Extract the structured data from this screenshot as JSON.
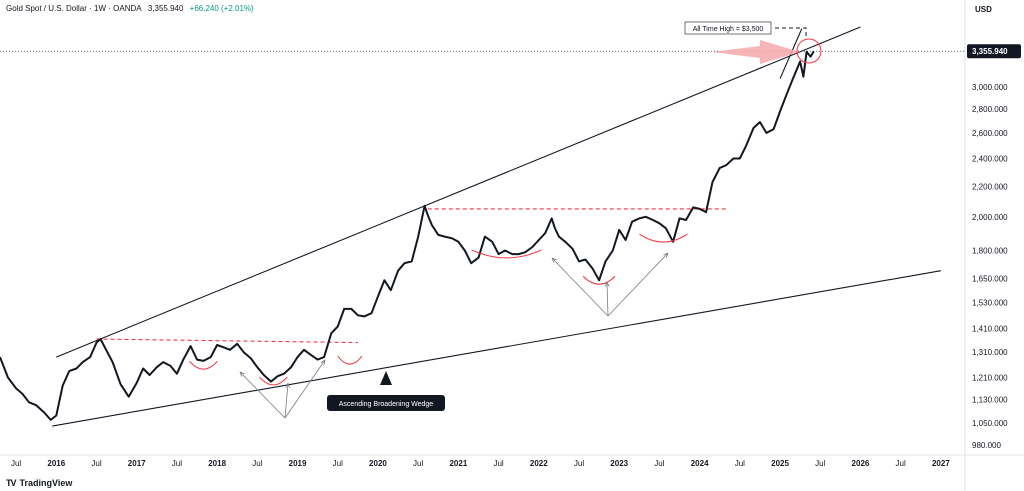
{
  "header": {
    "symbol": "Gold Spot / U.S. Dollar · 1W · OANDA",
    "last": "3,355.940",
    "change": "+66.240 (+2.01%)"
  },
  "brand": {
    "name": "TradingView",
    "logo": "TV"
  },
  "colors": {
    "price": "#131722",
    "resistance_dash": "#f23645",
    "arrow": "#f7a8aa",
    "annotation_arrow": "#787b86"
  },
  "annotations": {
    "wedge_label": "Ascending Broadening Wedge",
    "ath_label": "All Time High = $3,500"
  },
  "chart_data": {
    "type": "line",
    "title": "Gold Spot / U.S. Dollar · 1W · OANDA",
    "currency": "USD",
    "last_price_label": "3,355.940",
    "yscale": "log",
    "ylim": [
      950,
      3700
    ],
    "xlim": [
      2015.3,
      2027.3
    ],
    "y_ticks": [
      980,
      1050,
      1130,
      1210,
      1310,
      1410,
      1530,
      1650,
      1800,
      2000,
      2200,
      2400,
      2600,
      2800,
      3000
    ],
    "y_tick_labels": [
      "980.000",
      "1,050.000",
      "1,130.000",
      "1,210.000",
      "1,310.000",
      "1,410.000",
      "1,530.000",
      "1,650.000",
      "1,800.000",
      "2,000.000",
      "2,200.000",
      "2,400.000",
      "2,600.000",
      "2,800.000",
      "3,000.000"
    ],
    "x_ticks": [
      {
        "t": 2015.5,
        "label": "Jul"
      },
      {
        "t": 2016.0,
        "label": "2016"
      },
      {
        "t": 2016.5,
        "label": "Jul"
      },
      {
        "t": 2017.0,
        "label": "2017"
      },
      {
        "t": 2017.5,
        "label": "Jul"
      },
      {
        "t": 2018.0,
        "label": "2018"
      },
      {
        "t": 2018.5,
        "label": "Jul"
      },
      {
        "t": 2019.0,
        "label": "2019"
      },
      {
        "t": 2019.5,
        "label": "Jul"
      },
      {
        "t": 2020.0,
        "label": "2020"
      },
      {
        "t": 2020.5,
        "label": "Jul"
      },
      {
        "t": 2021.0,
        "label": "2021"
      },
      {
        "t": 2021.5,
        "label": "Jul"
      },
      {
        "t": 2022.0,
        "label": "2022"
      },
      {
        "t": 2022.5,
        "label": "Jul"
      },
      {
        "t": 2023.0,
        "label": "2023"
      },
      {
        "t": 2023.5,
        "label": "Jul"
      },
      {
        "t": 2024.0,
        "label": "2024"
      },
      {
        "t": 2024.5,
        "label": "Jul"
      },
      {
        "t": 2025.0,
        "label": "2025"
      },
      {
        "t": 2025.5,
        "label": "Jul"
      },
      {
        "t": 2026.0,
        "label": "2026"
      },
      {
        "t": 2026.5,
        "label": "Jul"
      },
      {
        "t": 2027.0,
        "label": "2027"
      }
    ],
    "series": [
      {
        "x": [
          2015.3,
          2015.4,
          2015.5,
          2015.58,
          2015.66,
          2015.75,
          2015.85,
          2015.93,
          2016.0,
          2016.08,
          2016.16,
          2016.25,
          2016.33,
          2016.42,
          2016.5,
          2016.55,
          2016.62,
          2016.7,
          2016.8,
          2016.9,
          2017.0,
          2017.08,
          2017.16,
          2017.25,
          2017.33,
          2017.42,
          2017.5,
          2017.58,
          2017.67,
          2017.75,
          2017.83,
          2017.92,
          2018.0,
          2018.08,
          2018.16,
          2018.25,
          2018.33,
          2018.42,
          2018.5,
          2018.58,
          2018.67,
          2018.75,
          2018.83,
          2018.92,
          2019.0,
          2019.08,
          2019.16,
          2019.25,
          2019.33,
          2019.42,
          2019.5,
          2019.58,
          2019.67,
          2019.75,
          2019.83,
          2019.92,
          2020.0,
          2020.08,
          2020.16,
          2020.25,
          2020.33,
          2020.42,
          2020.5,
          2020.58,
          2020.62,
          2020.67,
          2020.75,
          2020.83,
          2020.92,
          2021.0,
          2021.08,
          2021.16,
          2021.25,
          2021.33,
          2021.42,
          2021.5,
          2021.58,
          2021.67,
          2021.75,
          2021.83,
          2021.92,
          2022.0,
          2022.08,
          2022.16,
          2022.2,
          2022.25,
          2022.33,
          2022.42,
          2022.5,
          2022.58,
          2022.67,
          2022.75,
          2022.83,
          2022.92,
          2023.0,
          2023.08,
          2023.16,
          2023.25,
          2023.33,
          2023.42,
          2023.5,
          2023.58,
          2023.67,
          2023.75,
          2023.83,
          2023.92,
          2024.0,
          2024.08,
          2024.16,
          2024.25,
          2024.33,
          2024.42,
          2024.5,
          2024.58,
          2024.67,
          2024.75,
          2024.83,
          2024.92,
          2025.0,
          2025.08,
          2025.16,
          2025.25,
          2025.29,
          2025.33,
          2025.38,
          2025.42
        ],
        "y": [
          1290,
          1210,
          1170,
          1150,
          1120,
          1110,
          1085,
          1060,
          1075,
          1180,
          1235,
          1245,
          1270,
          1290,
          1350,
          1365,
          1320,
          1270,
          1185,
          1140,
          1190,
          1245,
          1220,
          1250,
          1270,
          1255,
          1225,
          1280,
          1335,
          1280,
          1275,
          1290,
          1340,
          1330,
          1320,
          1345,
          1310,
          1285,
          1250,
          1220,
          1195,
          1215,
          1225,
          1250,
          1290,
          1320,
          1300,
          1280,
          1290,
          1390,
          1420,
          1500,
          1500,
          1470,
          1465,
          1480,
          1560,
          1640,
          1590,
          1690,
          1730,
          1740,
          1880,
          2070,
          2010,
          1950,
          1890,
          1880,
          1870,
          1850,
          1800,
          1730,
          1760,
          1880,
          1850,
          1780,
          1800,
          1780,
          1780,
          1790,
          1820,
          1860,
          1900,
          1990,
          1930,
          1880,
          1850,
          1810,
          1740,
          1750,
          1700,
          1640,
          1740,
          1800,
          1920,
          1860,
          1970,
          1990,
          2000,
          1980,
          1960,
          1930,
          1850,
          1990,
          1980,
          2060,
          2050,
          2030,
          2230,
          2330,
          2350,
          2400,
          2400,
          2500,
          2640,
          2690,
          2600,
          2630,
          2780,
          2930,
          3080,
          3250,
          3100,
          3350,
          3300,
          3356
        ]
      }
    ]
  }
}
